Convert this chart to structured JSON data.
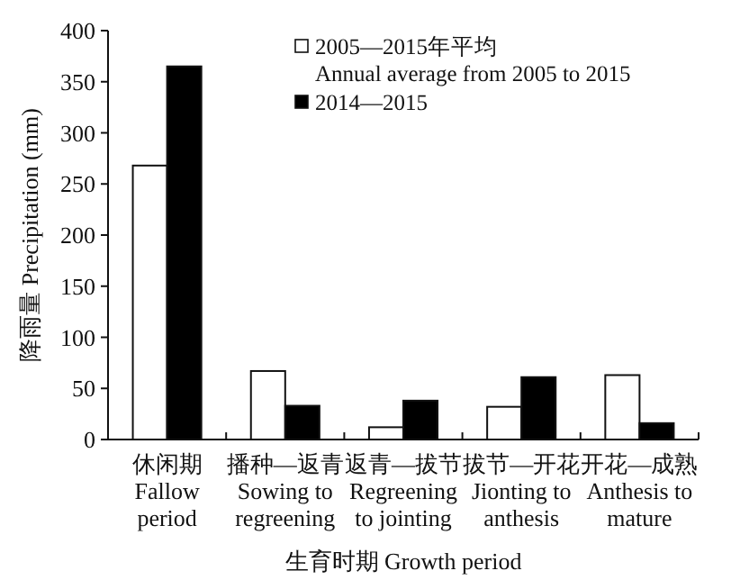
{
  "chart_data": {
    "type": "bar",
    "xlabel": "生育时期 Growth period",
    "ylabel": "降雨量 Precipitation (mm)",
    "categories": [
      "休闲期\nFallow\nperiod",
      "播种—返青\nSowing to\nregreening",
      "返青—拔节\nRegreening\nto jointing",
      "拔节—开花\nJionting to\nanthesis",
      "开花—成熟\nAnthesis to\nmature"
    ],
    "series": [
      {
        "name": "2005—2015年平均\nAnnual average from 2005 to 2015",
        "color": "#ffffff",
        "values": [
          268,
          67,
          12,
          32,
          63
        ]
      },
      {
        "name": "2014—2015",
        "color": "#000000",
        "values": [
          365,
          33,
          38,
          61,
          16
        ]
      }
    ],
    "ylim": [
      0,
      400
    ],
    "yticks": [
      0,
      50,
      100,
      150,
      200,
      250,
      300,
      350,
      400
    ],
    "legend": "top right",
    "grid": false
  }
}
